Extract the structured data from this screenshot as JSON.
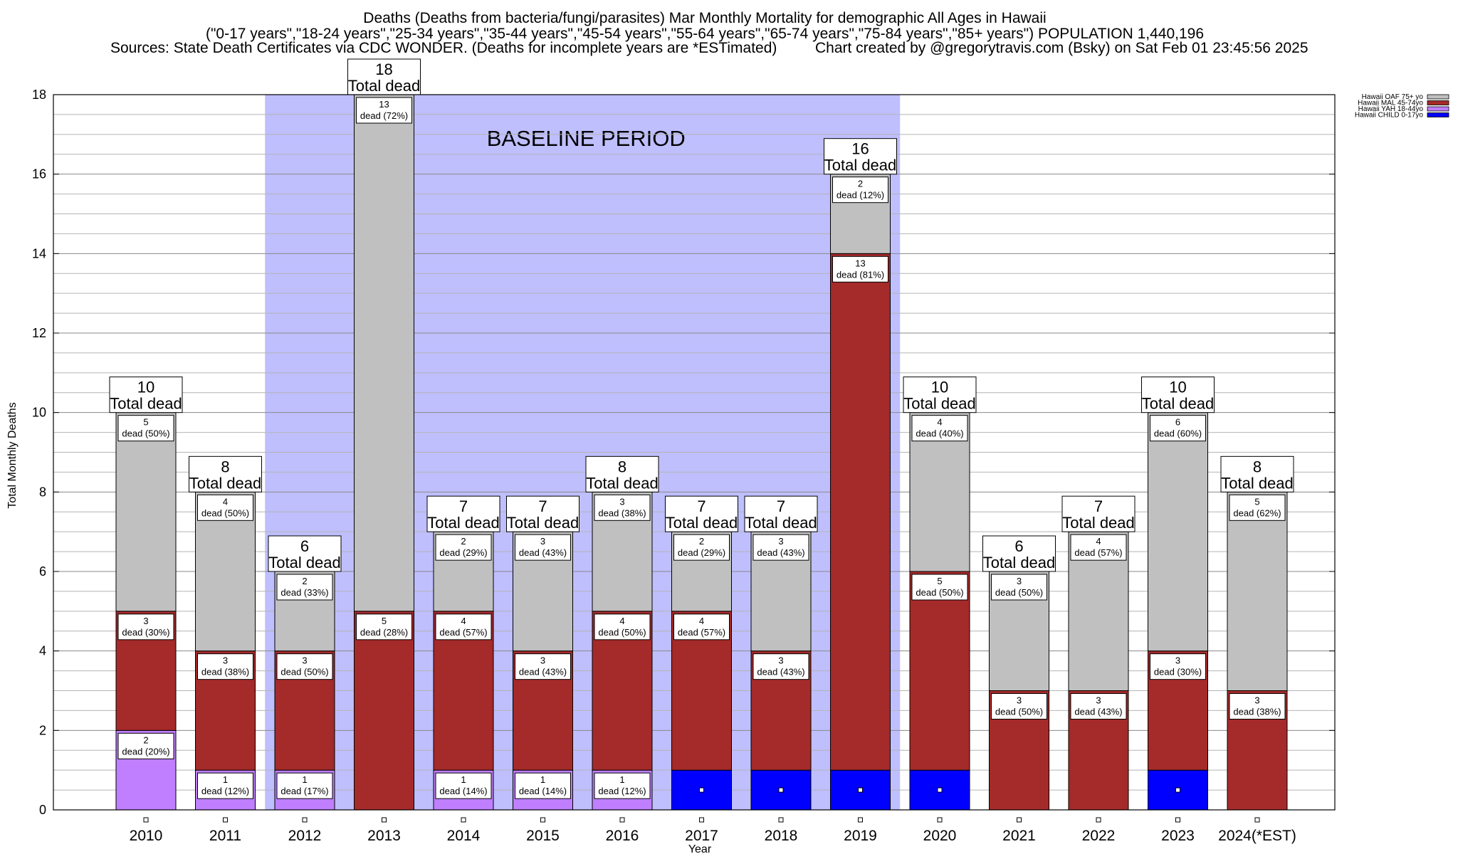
{
  "title": {
    "line1": "Deaths (Deaths from bacteria/fungi/parasites) Mar Monthly Mortality for demographic All Ages in Hawaii",
    "line2": "(\"0-17 years\",\"18-24 years\",\"25-34 years\",\"35-44 years\",\"45-54 years\",\"55-64 years\",\"65-74 years\",\"75-84 years\",\"85+ years\") POPULATION 1,440,196",
    "line3_left": "Sources: State Death Certificates via CDC WONDER. (Deaths for incomplete years are *ESTimated)",
    "line3_right": "Chart created by @gregorytravis.com (Bsky) on Sat Feb 01 23:45:56 2025"
  },
  "chart_data": {
    "type": "bar",
    "stacked": true,
    "categories": [
      "2010",
      "2011",
      "2012",
      "2013",
      "2014",
      "2015",
      "2016",
      "2017",
      "2018",
      "2019",
      "2020",
      "2021",
      "2022",
      "2023",
      "2024(*EST)"
    ],
    "series": [
      {
        "name": "Hawaii CHILD 0-17yo",
        "color": "#0000ff",
        "values": [
          0,
          0,
          0,
          0,
          0,
          0,
          0,
          1,
          1,
          1,
          1,
          0,
          0,
          1,
          0
        ]
      },
      {
        "name": "Hawaii YAH 18-44yo",
        "color": "#bf7fff",
        "values": [
          2,
          1,
          1,
          0,
          1,
          1,
          1,
          0,
          0,
          0,
          0,
          0,
          0,
          0,
          0
        ]
      },
      {
        "name": "Hawaii MAL 45-74yo",
        "color": "#a52a2a",
        "values": [
          3,
          3,
          3,
          5,
          4,
          3,
          4,
          4,
          3,
          13,
          5,
          3,
          3,
          3,
          3
        ]
      },
      {
        "name": "Hawaii OAF 75+ yo",
        "color": "#c0c0c0",
        "values": [
          5,
          4,
          2,
          13,
          2,
          3,
          3,
          2,
          3,
          2,
          4,
          3,
          4,
          6,
          5
        ]
      }
    ],
    "segment_labels": {
      "Hawaii YAH 18-44yo": [
        "2\ndead (20%)",
        "1\ndead (12%)",
        "1\ndead (17%)",
        "",
        "1\ndead (14%)",
        "1\ndead (14%)",
        "1\ndead (12%)",
        "",
        "",
        "",
        "",
        "",
        "",
        "",
        ""
      ],
      "Hawaii MAL 45-74yo": [
        "3\ndead (30%)",
        "3\ndead (38%)",
        "3\ndead (50%)",
        "5\ndead (28%)",
        "4\ndead (57%)",
        "3\ndead (43%)",
        "4\ndead (50%)",
        "4\ndead (57%)",
        "3\ndead (43%)",
        "13\ndead (81%)",
        "5\ndead (50%)",
        "3\ndead (50%)",
        "3\ndead (43%)",
        "3\ndead (30%)",
        "3\ndead (38%)"
      ],
      "Hawaii OAF 75+ yo": [
        "5\ndead (50%)",
        "4\ndead (50%)",
        "2\ndead (33%)",
        "13\ndead (72%)",
        "2\ndead (29%)",
        "3\ndead (43%)",
        "3\ndead (38%)",
        "2\ndead (29%)",
        "3\ndead (43%)",
        "2\ndead (12%)",
        "4\ndead (40%)",
        "3\ndead (50%)",
        "4\ndead (57%)",
        "6\ndead (60%)",
        "5\ndead (62%)"
      ]
    },
    "totals": [
      10,
      8,
      6,
      18,
      7,
      7,
      8,
      7,
      7,
      16,
      10,
      6,
      7,
      10,
      8
    ],
    "total_label": "Total dead",
    "xlabel": "Year",
    "ylabel": "Total Monthly Deaths",
    "ylim": [
      0,
      18
    ],
    "yticks": [
      0,
      2,
      4,
      6,
      8,
      10,
      12,
      14,
      16,
      18
    ],
    "grid": true,
    "legend_position": "top-right",
    "shaded_region": {
      "label": "BASELINE PERIOD",
      "from": "2012",
      "to": "2019",
      "color": "#bfbffe"
    }
  }
}
